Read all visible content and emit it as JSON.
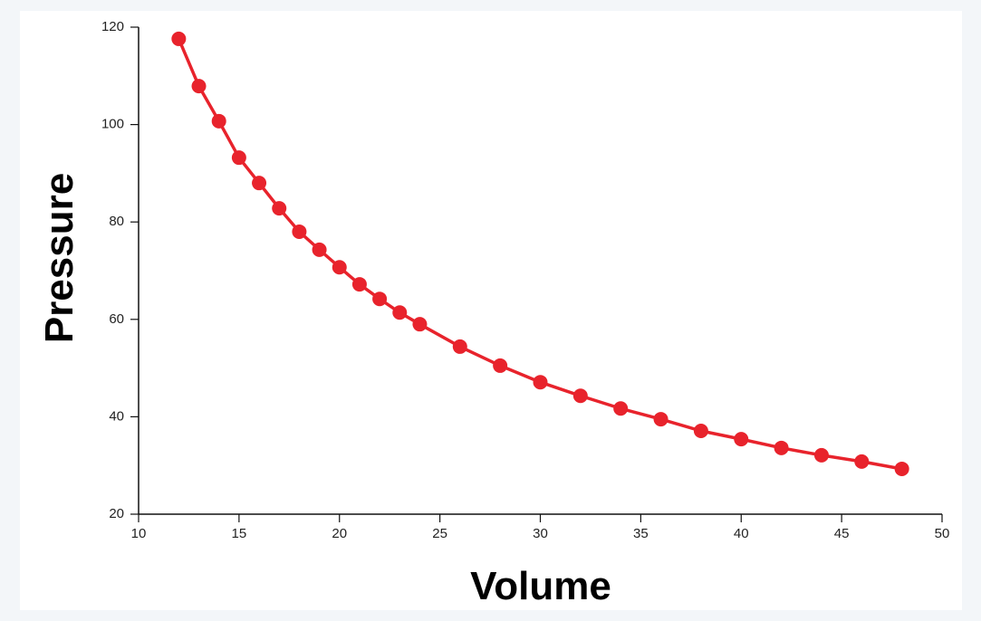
{
  "chart_data": {
    "type": "line",
    "x_label": "Volume",
    "y_label": "Pressure",
    "x": [
      12,
      13,
      14,
      15,
      16,
      17,
      18,
      19,
      20,
      21,
      22,
      23,
      24,
      26,
      28,
      30,
      32,
      34,
      36,
      38,
      40,
      42,
      44,
      46,
      48
    ],
    "series": [
      {
        "color": "#e8232c",
        "values": [
          117.6,
          107.9,
          100.7,
          93.2,
          88,
          82.8,
          78,
          74.3,
          70.7,
          67.2,
          64.2,
          61.4,
          59,
          54.4,
          50.5,
          47.1,
          44.3,
          41.7,
          39.5,
          37.1,
          35.4,
          33.6,
          32.1,
          30.8,
          29.3
        ]
      }
    ],
    "markers": true,
    "xlim": [
      10,
      50
    ],
    "xticks": [
      10,
      15,
      20,
      25,
      30,
      35,
      40,
      45,
      50
    ],
    "ylim": [
      20,
      120
    ],
    "yticks": [
      20,
      40,
      60,
      80,
      100,
      120
    ],
    "grid": false
  }
}
